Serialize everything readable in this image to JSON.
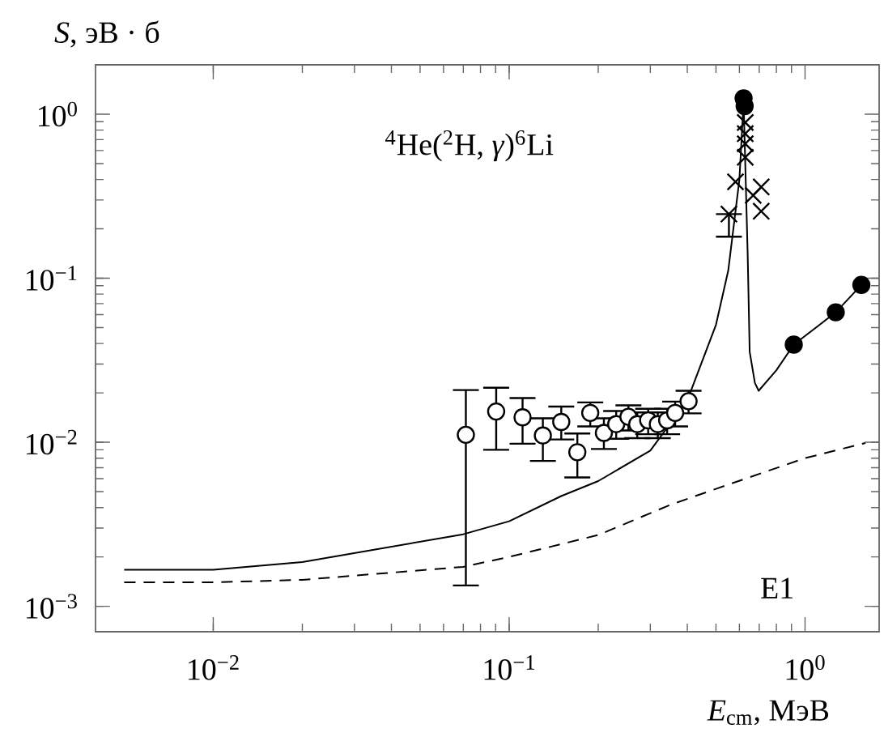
{
  "chart_data": {
    "type": "scatter",
    "xlabel": "*E*$_{cm}$, МэВ",
    "ylabel": "*S*, эВ · б",
    "annotations": [
      "$^{4}$He($^{2}$H, *γ*)$^{6}$Li",
      "E1"
    ],
    "log": "xy",
    "xlim": [
      0.004,
      1.78
    ],
    "ylim": [
      0.0007,
      2
    ],
    "xticks": [
      {
        "value": 0.01,
        "label": "10$^{−2}$"
      },
      {
        "value": 0.1,
        "label": "10$^{−1}$"
      },
      {
        "value": 1,
        "label": "10$^{0}$"
      }
    ],
    "yticks": [
      {
        "value": 0.001,
        "label": "10$^{−3}$"
      },
      {
        "value": 0.01,
        "label": "10$^{−2}$"
      },
      {
        "value": 0.1,
        "label": "10$^{−1}$"
      },
      {
        "value": 1,
        "label": "10$^{0}$"
      }
    ],
    "series": [
      {
        "type": "line",
        "color": "#000000",
        "marker": "none",
        "line_style": "solid",
        "x": [
          0.005,
          0.01,
          0.02,
          0.07,
          0.1,
          0.15,
          0.2,
          0.3,
          0.4,
          0.5,
          0.55,
          0.6,
          0.62,
          0.64,
          0.65,
          0.677,
          0.697,
          0.8,
          0.916,
          1.27,
          1.55
        ],
        "values": [
          0.00167,
          0.00167,
          0.00186,
          0.00275,
          0.0033,
          0.0047,
          0.0058,
          0.0089,
          0.018,
          0.052,
          0.111,
          0.4,
          1.2,
          0.139,
          0.0356,
          0.023,
          0.0206,
          0.0275,
          0.0394,
          0.062,
          0.091
        ]
      },
      {
        "type": "line",
        "color": "#000000",
        "marker": "none",
        "line_style": "dashed",
        "x": [
          0.005,
          0.01,
          0.02,
          0.07,
          0.1,
          0.2,
          0.35,
          0.5,
          1,
          1.6
        ],
        "values": [
          0.0014,
          0.0014,
          0.00145,
          0.00174,
          0.002,
          0.00272,
          0.00415,
          0.0052,
          0.008,
          0.0099
        ]
      },
      {
        "color": "#000000",
        "marker": "circle",
        "x": [
          0.0714,
          0.0904,
          0.111,
          0.13,
          0.15,
          0.17,
          0.188,
          0.209,
          0.23,
          0.253,
          0.271,
          0.295,
          0.318,
          0.342,
          0.364,
          0.404
        ],
        "values": [
          0.0111,
          0.0154,
          0.0142,
          0.011,
          0.0133,
          0.0087,
          0.0151,
          0.0114,
          0.0129,
          0.0143,
          0.0129,
          0.0136,
          0.0129,
          0.0136,
          0.0151,
          0.0178
        ],
        "errors": [
          [
            0.00134,
            0.0208
          ],
          [
            0.009,
            0.0215
          ],
          [
            0.0098,
            0.0186
          ],
          [
            0.0077,
            0.014
          ],
          [
            0.0104,
            0.0165
          ],
          [
            0.0061,
            0.0113
          ],
          [
            0.0125,
            0.0175
          ],
          [
            0.0091,
            0.014
          ],
          [
            0.0105,
            0.0155
          ],
          [
            0.0118,
            0.0168
          ],
          [
            0.0106,
            0.0152
          ],
          [
            0.0112,
            0.016
          ],
          [
            0.0106,
            0.0152
          ],
          [
            0.0112,
            0.016
          ],
          [
            0.0125,
            0.0177
          ],
          [
            0.015,
            0.0206
          ]
        ]
      },
      {
        "color": "#000000",
        "marker": "cross",
        "x": [
          0.553,
          0.582,
          0.628,
          0.668,
          0.711,
          0.711,
          0.628,
          0.628,
          0.628
        ],
        "values": [
          0.246,
          0.387,
          0.546,
          0.32,
          0.36,
          0.256,
          0.89,
          0.76,
          0.66
        ],
        "errors": [
          [
            0.179,
            0.246
          ],
          null,
          null,
          null,
          null,
          null,
          null,
          null,
          null
        ]
      },
      {
        "color": "#000000",
        "marker": "circle",
        "x": [
          0.62,
          0.625,
          0.916,
          1.27,
          1.55
        ],
        "values": [
          1.25,
          1.12,
          0.0394,
          0.062,
          0.091
        ]
      }
    ]
  }
}
